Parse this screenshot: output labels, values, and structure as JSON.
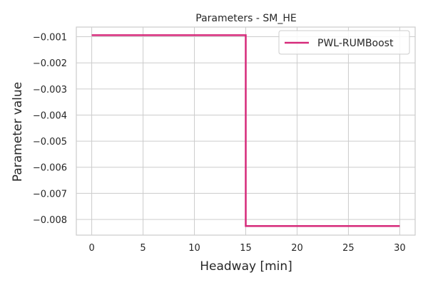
{
  "chart_data": {
    "type": "line",
    "title": "Parameters - SM_HE",
    "xlabel": "Headway [min]",
    "ylabel": "Parameter value",
    "xlim": [
      -1.5,
      31.5
    ],
    "ylim": [
      -0.0086,
      -0.00063
    ],
    "grid": true,
    "legend_position": "top-right",
    "x_ticks": [
      0,
      5,
      10,
      15,
      20,
      25,
      30
    ],
    "x_tick_labels": [
      "0",
      "5",
      "10",
      "15",
      "20",
      "25",
      "30"
    ],
    "y_ticks": [
      -0.001,
      -0.002,
      -0.003,
      -0.004,
      -0.005,
      -0.006,
      -0.007,
      -0.008
    ],
    "y_tick_labels": [
      "−0.001",
      "−0.002",
      "−0.003",
      "−0.004",
      "−0.005",
      "−0.006",
      "−0.007",
      "−0.008"
    ],
    "series": [
      {
        "name": "PWL-RUMBoost",
        "color": "#d62a7a",
        "x": [
          0,
          15,
          15,
          30
        ],
        "y": [
          -0.00094,
          -0.00094,
          -0.00825,
          -0.00825
        ]
      }
    ]
  }
}
